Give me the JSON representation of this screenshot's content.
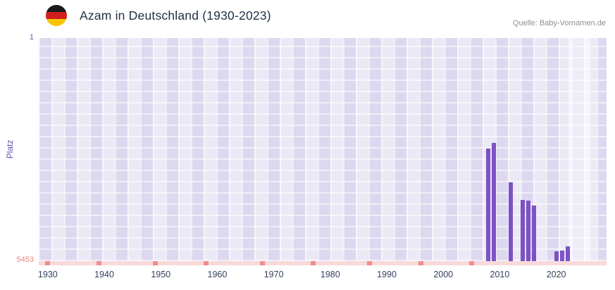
{
  "header": {
    "title": "Azam in Deutschland (1930-2023)",
    "source": "Quelle: Baby-Vornamen.de"
  },
  "axes": {
    "y_label": "Platz",
    "y_top_tick": "1",
    "y_bottom_tick": "5453"
  },
  "colors": {
    "bar": "#7d52c4",
    "plot_bg": "#e9e6f4",
    "axis_strip": "#f8dada",
    "no_data_marker": "#ef8e8e",
    "y_top_tick": "#6a5bb8",
    "y_bottom_tick": "#e8837e",
    "ylabel": "#5b4fae",
    "x_tick": "#35405e",
    "title": "#1f3044",
    "source": "#8f8f8f"
  },
  "chart_data": {
    "type": "bar",
    "title": "Azam in Deutschland (1930-2023)",
    "xlabel": "",
    "ylabel": "Platz",
    "y_domain": [
      1,
      5453
    ],
    "y_inverted": true,
    "x_domain": [
      1928.4,
      2028.9
    ],
    "x_ticks": [
      1930,
      1940,
      1950,
      1960,
      1970,
      1980,
      1990,
      2000,
      2010,
      2020
    ],
    "grid": true,
    "legend": false,
    "points": [
      {
        "year": 2008,
        "rank": 2700
      },
      {
        "year": 2009,
        "rank": 2560
      },
      {
        "year": 2012,
        "rank": 3520
      },
      {
        "year": 2014,
        "rank": 3950
      },
      {
        "year": 2015,
        "rank": 3970
      },
      {
        "year": 2016,
        "rank": 4090
      },
      {
        "year": 2020,
        "rank": 5210
      },
      {
        "year": 2021,
        "rank": 5190
      },
      {
        "year": 2022,
        "rank": 5090
      }
    ],
    "no_data_years": [
      1930,
      1939,
      1949,
      1958,
      1968,
      1977,
      1987,
      1996,
      2005
    ],
    "highlight_band_years": [
      2022.2,
      2026.0
    ]
  }
}
